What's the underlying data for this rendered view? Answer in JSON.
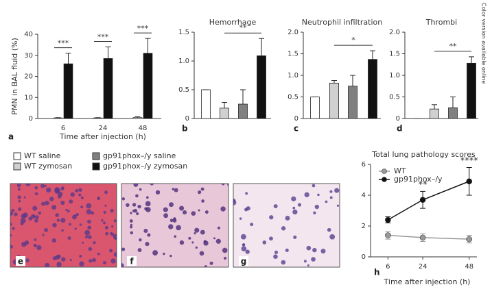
{
  "side_note": "Color version available online",
  "legend": [
    {
      "name": "WT saline",
      "color": "#ffffff"
    },
    {
      "name": "WT zymosan",
      "color": "#d0d0d0"
    },
    {
      "name": "gp91phox–/y saline",
      "color": "#808080"
    },
    {
      "name": "gp91phox–/y zymosan",
      "color": "#111111"
    }
  ],
  "micrographs": [
    "e",
    "f",
    "g"
  ],
  "chart_data": [
    {
      "type": "bar",
      "label": "a",
      "ylabel": "PMN in BAL fluid (%)",
      "xlabel": "Time after injection (h)",
      "categories": [
        "6",
        "24",
        "48"
      ],
      "series": [
        {
          "color": "#d0d0d0",
          "values": [
            0.3,
            0.3,
            0.5
          ],
          "errors": [
            0.1,
            0.1,
            0.3
          ]
        },
        {
          "color": "#111111",
          "values": [
            26,
            28.5,
            31
          ],
          "errors": [
            5,
            5.5,
            7
          ]
        }
      ],
      "significance": [
        "***",
        "***",
        "***"
      ],
      "ylim": [
        0,
        40
      ],
      "yticks": [
        0,
        10,
        20,
        30,
        40
      ]
    },
    {
      "type": "bar",
      "label": "b",
      "title": "Hemorrhage",
      "values": [
        0.5,
        0.18,
        0.25,
        1.09
      ],
      "errors": [
        0,
        0.1,
        0.25,
        0.3
      ],
      "significance": "**",
      "ylim": [
        0,
        1.5
      ],
      "yticks": [
        0,
        0.5,
        {
          "value": 1,
          "label": "1.0"
        },
        1.5
      ]
    },
    {
      "type": "bar",
      "label": "c",
      "title": "Neutrophil infiltration",
      "values": [
        0.5,
        0.82,
        0.75,
        1.37
      ],
      "errors": [
        0,
        0.06,
        0.25,
        0.2
      ],
      "significance": "*",
      "ylim": [
        0,
        2
      ],
      "yticks": [
        0,
        0.5,
        {
          "value": 1,
          "label": "1.0"
        },
        1.5,
        {
          "value": 2,
          "label": "2.0"
        }
      ]
    },
    {
      "type": "bar",
      "label": "d",
      "title": "Thrombi",
      "values": [
        0,
        0.22,
        0.25,
        1.28
      ],
      "errors": [
        0,
        0.1,
        0.25,
        0.15
      ],
      "significance": "**",
      "ylim": [
        0,
        2
      ],
      "yticks": [
        0,
        0.5,
        {
          "value": 1,
          "label": "1.0"
        },
        1.5,
        {
          "value": 2,
          "label": "2.0"
        }
      ]
    },
    {
      "type": "line",
      "label": "h",
      "title": "Total lung pathology scores",
      "xlabel": "Time after injection (h)",
      "x": [
        6,
        24,
        48
      ],
      "series": [
        {
          "name": "WT",
          "color": "#999999",
          "values": [
            1.4,
            1.25,
            1.15
          ],
          "errors": [
            0.25,
            0.25,
            0.25
          ]
        },
        {
          "name": "gp91phox–/y",
          "color": "#111111",
          "values": [
            2.4,
            3.7,
            4.9
          ],
          "errors": [
            0.2,
            0.55,
            0.9
          ]
        }
      ],
      "significance": [
        null,
        "**",
        "****"
      ],
      "xlim": [
        -3,
        52
      ],
      "xticks": [
        6,
        24,
        48
      ],
      "ylim": [
        0,
        6
      ],
      "yticks": [
        0,
        2,
        4,
        6
      ]
    }
  ]
}
